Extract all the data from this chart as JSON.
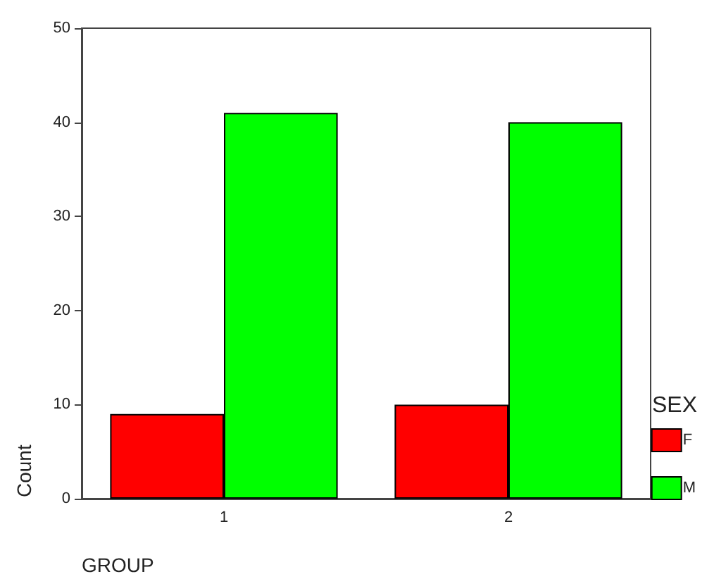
{
  "chart_data": {
    "type": "bar",
    "xlabel": "GROUP",
    "ylabel": "Count",
    "legend_title": "SEX",
    "categories": [
      "1",
      "2"
    ],
    "series": [
      {
        "name": "F",
        "color": "#ff0000",
        "values": [
          9,
          10
        ]
      },
      {
        "name": "M",
        "color": "#00ff00",
        "values": [
          41,
          40
        ]
      }
    ],
    "ylim": [
      0,
      50
    ],
    "yticks": [
      0,
      10,
      20,
      30,
      40,
      50
    ],
    "grid": false,
    "legend": "right"
  }
}
